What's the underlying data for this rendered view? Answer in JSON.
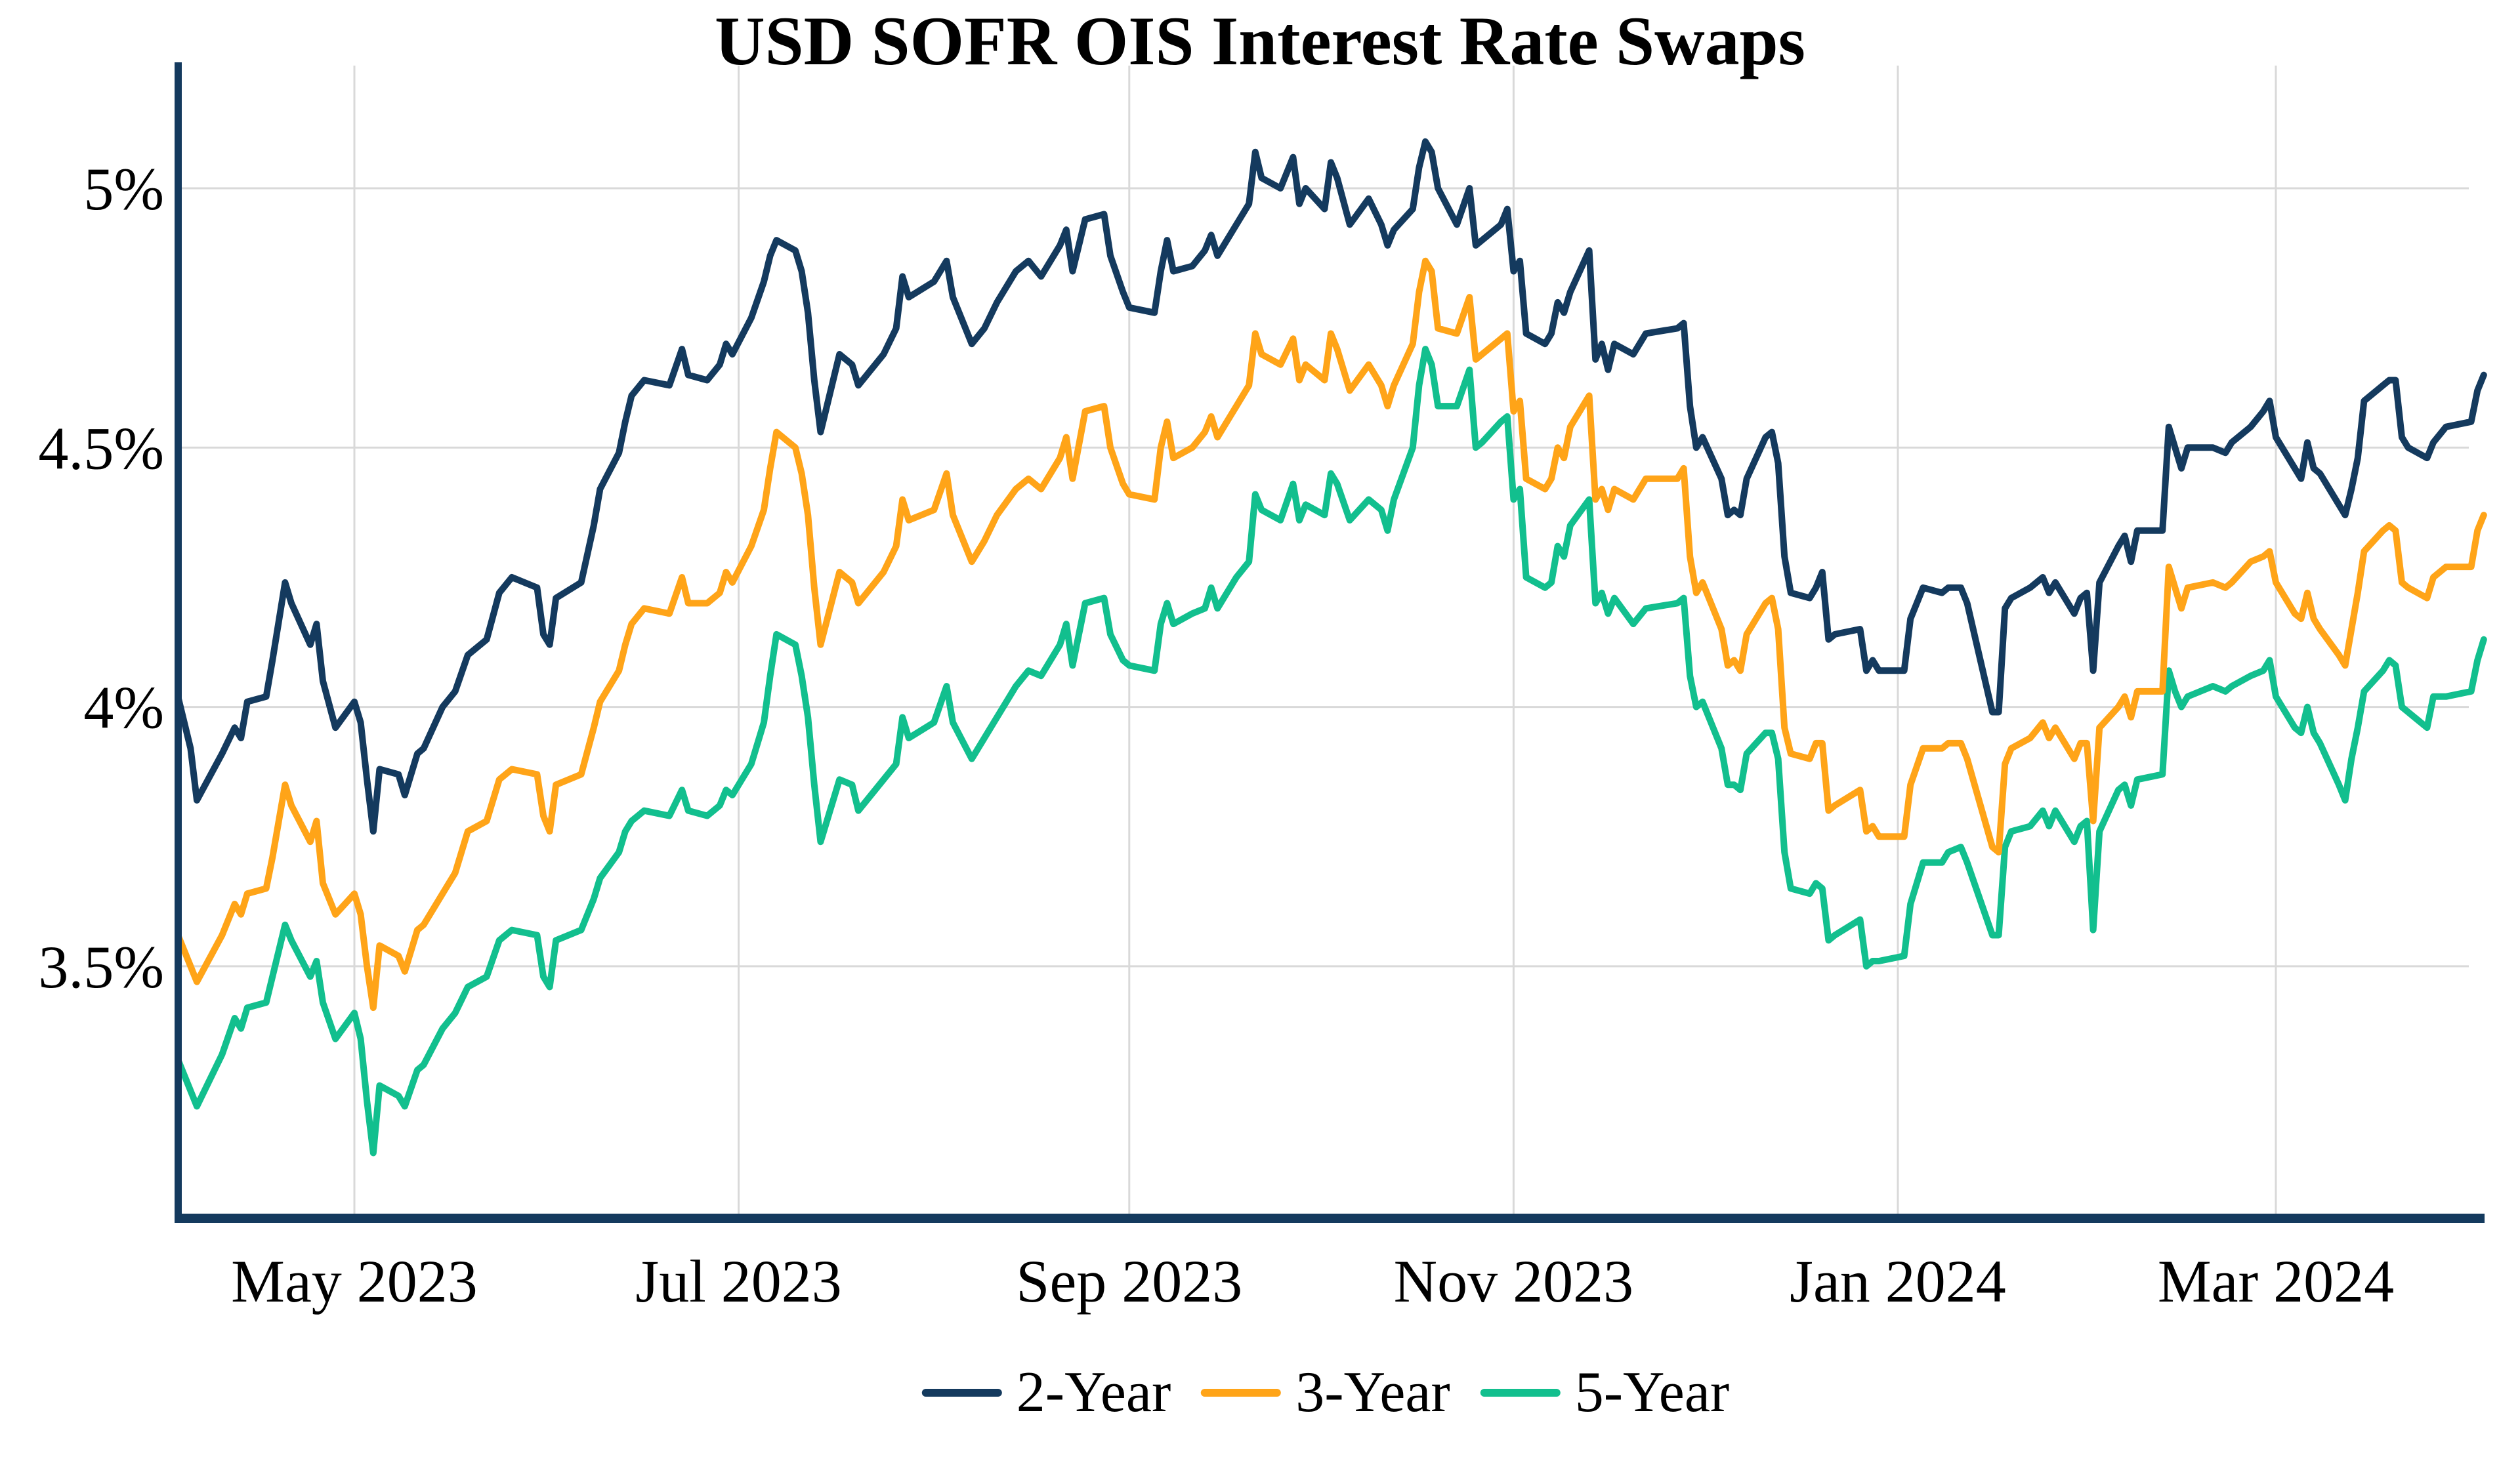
{
  "chart": {
    "title": "USD SOFR OIS Interest Rate Swaps"
  },
  "legend": {
    "items": [
      {
        "label": "2-Year",
        "color": "#143A5E"
      },
      {
        "label": "3-Year",
        "color": "#FFA418"
      },
      {
        "label": "5-Year",
        "color": "#12BF8E"
      }
    ]
  },
  "chart_data": {
    "type": "line",
    "title": "USD SOFR OIS Interest Rate Swaps",
    "xlabel": "",
    "ylabel": "",
    "legend_position": "bottom-center",
    "grid": true,
    "grid_color": "#D9D9D9",
    "axis_color": "#143A5E",
    "ylim": [
      3.0,
      5.24
    ],
    "x_range": [
      "2023-04-03",
      "2024-04-03"
    ],
    "y_ticks": [
      {
        "value": 5.0,
        "label": "5%"
      },
      {
        "value": 4.5,
        "label": "4.5%"
      },
      {
        "value": 4.0,
        "label": "4%"
      },
      {
        "value": 3.5,
        "label": "3.5%"
      }
    ],
    "x_ticks": [
      {
        "date": "2023-05-01",
        "label": "May 2023"
      },
      {
        "date": "2023-07-01",
        "label": "Jul 2023"
      },
      {
        "date": "2023-09-01",
        "label": "Sep 2023"
      },
      {
        "date": "2023-11-01",
        "label": "Nov 2023"
      },
      {
        "date": "2024-01-01",
        "label": "Jan 2024"
      },
      {
        "date": "2024-03-01",
        "label": "Mar 2024"
      }
    ],
    "series": [
      {
        "name": "2-Year",
        "color": "#143A5E"
      },
      {
        "name": "3-Year",
        "color": "#FFA418"
      },
      {
        "name": "5-Year",
        "color": "#12BF8E"
      }
    ],
    "points": [
      [
        "2023-04-03",
        4.02,
        3.56,
        3.32
      ],
      [
        "2023-04-05",
        3.92,
        3.5,
        3.26
      ],
      [
        "2023-04-06",
        3.82,
        3.47,
        3.23
      ],
      [
        "2023-04-10",
        3.91,
        3.56,
        3.33
      ],
      [
        "2023-04-12",
        3.96,
        3.62,
        3.4
      ],
      [
        "2023-04-13",
        3.94,
        3.6,
        3.38
      ],
      [
        "2023-04-14",
        4.01,
        3.64,
        3.42
      ],
      [
        "2023-04-17",
        4.02,
        3.65,
        3.43
      ],
      [
        "2023-04-18",
        4.09,
        3.71,
        3.48
      ],
      [
        "2023-04-20",
        4.24,
        3.85,
        3.58
      ],
      [
        "2023-04-21",
        4.2,
        3.81,
        3.55
      ],
      [
        "2023-04-24",
        4.12,
        3.74,
        3.48
      ],
      [
        "2023-04-25",
        4.16,
        3.78,
        3.51
      ],
      [
        "2023-04-26",
        4.05,
        3.66,
        3.43
      ],
      [
        "2023-04-28",
        3.96,
        3.6,
        3.36
      ],
      [
        "2023-05-01",
        4.01,
        3.64,
        3.41
      ],
      [
        "2023-05-02",
        3.97,
        3.6,
        3.36
      ],
      [
        "2023-05-03",
        3.86,
        3.5,
        3.24
      ],
      [
        "2023-05-04",
        3.76,
        3.42,
        3.14
      ],
      [
        "2023-05-05",
        3.88,
        3.54,
        3.27
      ],
      [
        "2023-05-08",
        3.87,
        3.52,
        3.25
      ],
      [
        "2023-05-09",
        3.83,
        3.49,
        3.23
      ],
      [
        "2023-05-11",
        3.91,
        3.57,
        3.3
      ],
      [
        "2023-05-12",
        3.92,
        3.58,
        3.31
      ],
      [
        "2023-05-15",
        4.0,
        3.64,
        3.38
      ],
      [
        "2023-05-17",
        4.03,
        3.68,
        3.41
      ],
      [
        "2023-05-19",
        4.1,
        3.76,
        3.46
      ],
      [
        "2023-05-22",
        4.13,
        3.78,
        3.48
      ],
      [
        "2023-05-24",
        4.22,
        3.86,
        3.55
      ],
      [
        "2023-05-26",
        4.25,
        3.88,
        3.57
      ],
      [
        "2023-05-30",
        4.23,
        3.87,
        3.56
      ],
      [
        "2023-05-31",
        4.14,
        3.79,
        3.48
      ],
      [
        "2023-06-01",
        4.12,
        3.76,
        3.46
      ],
      [
        "2023-06-02",
        4.21,
        3.85,
        3.55
      ],
      [
        "2023-06-06",
        4.24,
        3.87,
        3.57
      ],
      [
        "2023-06-08",
        4.35,
        3.96,
        3.63
      ],
      [
        "2023-06-09",
        4.42,
        4.01,
        3.67
      ],
      [
        "2023-06-12",
        4.49,
        4.07,
        3.72
      ],
      [
        "2023-06-13",
        4.55,
        4.12,
        3.76
      ],
      [
        "2023-06-14",
        4.6,
        4.16,
        3.78
      ],
      [
        "2023-06-16",
        4.63,
        4.19,
        3.8
      ],
      [
        "2023-06-20",
        4.62,
        4.18,
        3.79
      ],
      [
        "2023-06-22",
        4.69,
        4.25,
        3.84
      ],
      [
        "2023-06-23",
        4.64,
        4.2,
        3.8
      ],
      [
        "2023-06-26",
        4.63,
        4.2,
        3.79
      ],
      [
        "2023-06-28",
        4.66,
        4.22,
        3.81
      ],
      [
        "2023-06-29",
        4.7,
        4.26,
        3.84
      ],
      [
        "2023-06-30",
        4.68,
        4.24,
        3.83
      ],
      [
        "2023-07-03",
        4.75,
        4.31,
        3.89
      ],
      [
        "2023-07-05",
        4.82,
        4.38,
        3.97
      ],
      [
        "2023-07-06",
        4.87,
        4.46,
        4.06
      ],
      [
        "2023-07-07",
        4.9,
        4.53,
        4.14
      ],
      [
        "2023-07-10",
        4.88,
        4.5,
        4.12
      ],
      [
        "2023-07-11",
        4.84,
        4.45,
        4.06
      ],
      [
        "2023-07-12",
        4.76,
        4.37,
        3.98
      ],
      [
        "2023-07-13",
        4.63,
        4.23,
        3.85
      ],
      [
        "2023-07-14",
        4.53,
        4.12,
        3.74
      ],
      [
        "2023-07-17",
        4.68,
        4.26,
        3.86
      ],
      [
        "2023-07-19",
        4.66,
        4.24,
        3.85
      ],
      [
        "2023-07-20",
        4.62,
        4.2,
        3.8
      ],
      [
        "2023-07-24",
        4.68,
        4.26,
        3.86
      ],
      [
        "2023-07-26",
        4.73,
        4.31,
        3.89
      ],
      [
        "2023-07-27",
        4.83,
        4.4,
        3.98
      ],
      [
        "2023-07-28",
        4.79,
        4.36,
        3.94
      ],
      [
        "2023-08-01",
        4.82,
        4.38,
        3.97
      ],
      [
        "2023-08-03",
        4.86,
        4.45,
        4.04
      ],
      [
        "2023-08-04",
        4.79,
        4.37,
        3.97
      ],
      [
        "2023-08-07",
        4.7,
        4.28,
        3.9
      ],
      [
        "2023-08-09",
        4.73,
        4.32,
        3.94
      ],
      [
        "2023-08-11",
        4.78,
        4.37,
        3.98
      ],
      [
        "2023-08-14",
        4.84,
        4.42,
        4.04
      ],
      [
        "2023-08-16",
        4.86,
        4.44,
        4.07
      ],
      [
        "2023-08-18",
        4.83,
        4.42,
        4.06
      ],
      [
        "2023-08-21",
        4.89,
        4.48,
        4.12
      ],
      [
        "2023-08-22",
        4.92,
        4.52,
        4.16
      ],
      [
        "2023-08-23",
        4.84,
        4.44,
        4.08
      ],
      [
        "2023-08-25",
        4.94,
        4.57,
        4.2
      ],
      [
        "2023-08-28",
        4.95,
        4.58,
        4.21
      ],
      [
        "2023-08-29",
        4.87,
        4.5,
        4.14
      ],
      [
        "2023-08-31",
        4.8,
        4.43,
        4.09
      ],
      [
        "2023-09-01",
        4.77,
        4.41,
        4.08
      ],
      [
        "2023-09-05",
        4.76,
        4.4,
        4.07
      ],
      [
        "2023-09-06",
        4.84,
        4.5,
        4.16
      ],
      [
        "2023-09-07",
        4.9,
        4.55,
        4.2
      ],
      [
        "2023-09-08",
        4.84,
        4.48,
        4.16
      ],
      [
        "2023-09-11",
        4.85,
        4.5,
        4.18
      ],
      [
        "2023-09-13",
        4.88,
        4.53,
        4.19
      ],
      [
        "2023-09-14",
        4.91,
        4.56,
        4.23
      ],
      [
        "2023-09-15",
        4.87,
        4.52,
        4.19
      ],
      [
        "2023-09-18",
        4.93,
        4.58,
        4.25
      ],
      [
        "2023-09-20",
        4.97,
        4.62,
        4.28
      ],
      [
        "2023-09-21",
        5.07,
        4.72,
        4.41
      ],
      [
        "2023-09-22",
        5.02,
        4.68,
        4.38
      ],
      [
        "2023-09-25",
        5.0,
        4.66,
        4.36
      ],
      [
        "2023-09-27",
        5.06,
        4.71,
        4.43
      ],
      [
        "2023-09-28",
        4.97,
        4.63,
        4.36
      ],
      [
        "2023-09-29",
        5.0,
        4.66,
        4.39
      ],
      [
        "2023-10-02",
        4.96,
        4.63,
        4.37
      ],
      [
        "2023-10-03",
        5.05,
        4.72,
        4.45
      ],
      [
        "2023-10-04",
        5.02,
        4.69,
        4.43
      ],
      [
        "2023-10-06",
        4.93,
        4.61,
        4.36
      ],
      [
        "2023-10-09",
        4.98,
        4.66,
        4.4
      ],
      [
        "2023-10-11",
        4.93,
        4.62,
        4.38
      ],
      [
        "2023-10-12",
        4.89,
        4.58,
        4.34
      ],
      [
        "2023-10-13",
        4.92,
        4.62,
        4.4
      ],
      [
        "2023-10-16",
        4.96,
        4.7,
        4.5
      ],
      [
        "2023-10-17",
        5.04,
        4.8,
        4.62
      ],
      [
        "2023-10-18",
        5.09,
        4.86,
        4.69
      ],
      [
        "2023-10-19",
        5.07,
        4.84,
        4.66
      ],
      [
        "2023-10-20",
        5.0,
        4.73,
        4.58
      ],
      [
        "2023-10-23",
        4.93,
        4.72,
        4.58
      ],
      [
        "2023-10-25",
        5.0,
        4.79,
        4.65
      ],
      [
        "2023-10-26",
        4.89,
        4.67,
        4.5
      ],
      [
        "2023-10-27",
        4.9,
        4.68,
        4.51
      ],
      [
        "2023-10-30",
        4.93,
        4.71,
        4.55
      ],
      [
        "2023-10-31",
        4.96,
        4.72,
        4.56
      ],
      [
        "2023-11-01",
        4.84,
        4.57,
        4.4
      ],
      [
        "2023-11-02",
        4.86,
        4.59,
        4.42
      ],
      [
        "2023-11-03",
        4.72,
        4.44,
        4.25
      ],
      [
        "2023-11-06",
        4.7,
        4.42,
        4.23
      ],
      [
        "2023-11-07",
        4.72,
        4.44,
        4.24
      ],
      [
        "2023-11-08",
        4.78,
        4.5,
        4.31
      ],
      [
        "2023-11-09",
        4.76,
        4.48,
        4.29
      ],
      [
        "2023-11-10",
        4.8,
        4.54,
        4.35
      ],
      [
        "2023-11-13",
        4.88,
        4.6,
        4.4
      ],
      [
        "2023-11-14",
        4.67,
        4.4,
        4.2
      ],
      [
        "2023-11-15",
        4.7,
        4.42,
        4.22
      ],
      [
        "2023-11-16",
        4.65,
        4.38,
        4.18
      ],
      [
        "2023-11-17",
        4.7,
        4.42,
        4.21
      ],
      [
        "2023-11-20",
        4.68,
        4.4,
        4.16
      ],
      [
        "2023-11-22",
        4.72,
        4.44,
        4.19
      ],
      [
        "2023-11-27",
        4.73,
        4.44,
        4.2
      ],
      [
        "2023-11-28",
        4.74,
        4.46,
        4.21
      ],
      [
        "2023-11-29",
        4.58,
        4.29,
        4.06
      ],
      [
        "2023-11-30",
        4.5,
        4.22,
        4.0
      ],
      [
        "2023-12-01",
        4.52,
        4.24,
        4.01
      ],
      [
        "2023-12-04",
        4.44,
        4.15,
        3.92
      ],
      [
        "2023-12-05",
        4.37,
        4.08,
        3.85
      ],
      [
        "2023-12-06",
        4.38,
        4.09,
        3.85
      ],
      [
        "2023-12-07",
        4.37,
        4.07,
        3.84
      ],
      [
        "2023-12-08",
        4.44,
        4.14,
        3.91
      ],
      [
        "2023-12-11",
        4.52,
        4.2,
        3.95
      ],
      [
        "2023-12-12",
        4.53,
        4.21,
        3.95
      ],
      [
        "2023-12-13",
        4.47,
        4.15,
        3.9
      ],
      [
        "2023-12-14",
        4.29,
        3.96,
        3.72
      ],
      [
        "2023-12-15",
        4.22,
        3.91,
        3.65
      ],
      [
        "2023-12-18",
        4.21,
        3.9,
        3.64
      ],
      [
        "2023-12-19",
        4.23,
        3.93,
        3.66
      ],
      [
        "2023-12-20",
        4.26,
        3.93,
        3.65
      ],
      [
        "2023-12-21",
        4.13,
        3.8,
        3.55
      ],
      [
        "2023-12-22",
        4.14,
        3.81,
        3.56
      ],
      [
        "2023-12-26",
        4.15,
        3.84,
        3.59
      ],
      [
        "2023-12-27",
        4.07,
        3.76,
        3.5
      ],
      [
        "2023-12-28",
        4.09,
        3.77,
        3.51
      ],
      [
        "2023-12-29",
        4.07,
        3.75,
        3.51
      ],
      [
        "2024-01-02",
        4.07,
        3.75,
        3.52
      ],
      [
        "2024-01-03",
        4.17,
        3.85,
        3.62
      ],
      [
        "2024-01-05",
        4.23,
        3.92,
        3.7
      ],
      [
        "2024-01-08",
        4.22,
        3.92,
        3.7
      ],
      [
        "2024-01-09",
        4.23,
        3.93,
        3.72
      ],
      [
        "2024-01-11",
        4.23,
        3.93,
        3.73
      ],
      [
        "2024-01-12",
        4.2,
        3.9,
        3.7
      ],
      [
        "2024-01-16",
        3.99,
        3.73,
        3.56
      ],
      [
        "2024-01-17",
        3.99,
        3.72,
        3.56
      ],
      [
        "2024-01-18",
        4.19,
        3.89,
        3.73
      ],
      [
        "2024-01-19",
        4.21,
        3.92,
        3.76
      ],
      [
        "2024-01-22",
        4.23,
        3.94,
        3.77
      ],
      [
        "2024-01-24",
        4.25,
        3.97,
        3.8
      ],
      [
        "2024-01-25",
        4.22,
        3.94,
        3.77
      ],
      [
        "2024-01-26",
        4.24,
        3.96,
        3.8
      ],
      [
        "2024-01-29",
        4.18,
        3.9,
        3.74
      ],
      [
        "2024-01-30",
        4.21,
        3.93,
        3.77
      ],
      [
        "2024-01-31",
        4.22,
        3.93,
        3.78
      ],
      [
        "2024-02-01",
        4.07,
        3.78,
        3.57
      ],
      [
        "2024-02-02",
        4.24,
        3.96,
        3.76
      ],
      [
        "2024-02-05",
        4.31,
        4.0,
        3.84
      ],
      [
        "2024-02-06",
        4.33,
        4.02,
        3.85
      ],
      [
        "2024-02-07",
        4.28,
        3.98,
        3.81
      ],
      [
        "2024-02-08",
        4.34,
        4.03,
        3.86
      ],
      [
        "2024-02-12",
        4.34,
        4.03,
        3.87
      ],
      [
        "2024-02-13",
        4.54,
        4.27,
        4.07
      ],
      [
        "2024-02-14",
        4.5,
        4.23,
        4.03
      ],
      [
        "2024-02-15",
        4.46,
        4.19,
        4.0
      ],
      [
        "2024-02-16",
        4.5,
        4.23,
        4.02
      ],
      [
        "2024-02-20",
        4.5,
        4.24,
        4.04
      ],
      [
        "2024-02-22",
        4.49,
        4.23,
        4.03
      ],
      [
        "2024-02-23",
        4.51,
        4.24,
        4.04
      ],
      [
        "2024-02-26",
        4.54,
        4.28,
        4.06
      ],
      [
        "2024-02-28",
        4.57,
        4.29,
        4.07
      ],
      [
        "2024-02-29",
        4.59,
        4.3,
        4.09
      ],
      [
        "2024-03-01",
        4.52,
        4.24,
        4.02
      ],
      [
        "2024-03-04",
        4.46,
        4.18,
        3.96
      ],
      [
        "2024-03-05",
        4.44,
        4.17,
        3.95
      ],
      [
        "2024-03-06",
        4.51,
        4.22,
        4.0
      ],
      [
        "2024-03-07",
        4.46,
        4.17,
        3.95
      ],
      [
        "2024-03-08",
        4.45,
        4.15,
        3.93
      ],
      [
        "2024-03-11",
        4.39,
        4.1,
        3.85
      ],
      [
        "2024-03-12",
        4.37,
        4.08,
        3.82
      ],
      [
        "2024-03-13",
        4.42,
        4.15,
        3.9
      ],
      [
        "2024-03-14",
        4.48,
        4.22,
        3.96
      ],
      [
        "2024-03-15",
        4.59,
        4.3,
        4.03
      ],
      [
        "2024-03-18",
        4.62,
        4.34,
        4.07
      ],
      [
        "2024-03-19",
        4.63,
        4.35,
        4.09
      ],
      [
        "2024-03-20",
        4.63,
        4.34,
        4.08
      ],
      [
        "2024-03-21",
        4.52,
        4.24,
        4.0
      ],
      [
        "2024-03-22",
        4.5,
        4.23,
        3.99
      ],
      [
        "2024-03-25",
        4.48,
        4.21,
        3.96
      ],
      [
        "2024-03-26",
        4.51,
        4.25,
        4.02
      ],
      [
        "2024-03-28",
        4.54,
        4.27,
        4.02
      ],
      [
        "2024-04-01",
        4.55,
        4.27,
        4.03
      ],
      [
        "2024-04-02",
        4.61,
        4.34,
        4.09
      ],
      [
        "2024-04-03",
        4.64,
        4.37,
        4.13
      ]
    ]
  }
}
